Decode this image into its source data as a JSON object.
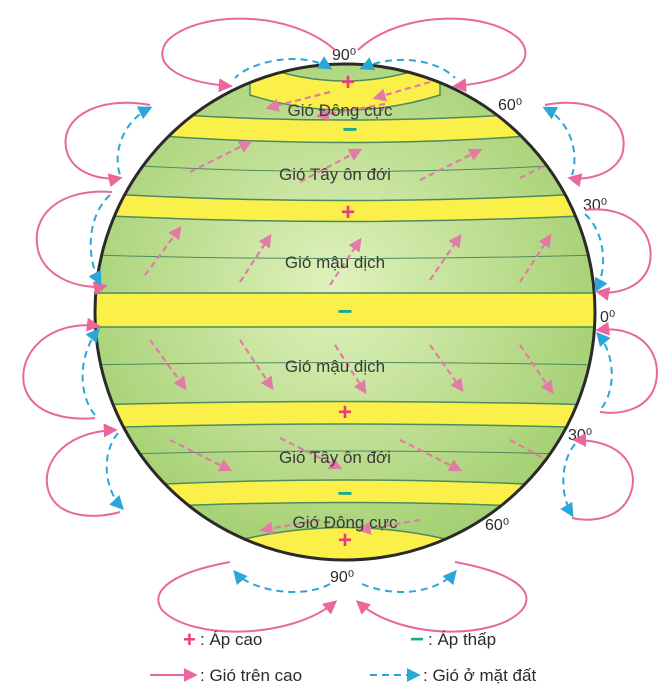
{
  "colors": {
    "globe_green": "#a9d47a",
    "globe_light": "#d6ecb0",
    "band_yellow": "#fbef4a",
    "band_line": "#4f8a5f",
    "high_pressure": "#ee3b7c",
    "low_pressure": "#1aa891",
    "upper_wind": "#e9679c",
    "surface_wind": "#2aa6d9",
    "inner_wind": "#e27ba6",
    "outline": "#2a2a2a"
  },
  "latitudes": {
    "north_90": "90⁰",
    "north_60": "60⁰",
    "north_30": "30⁰",
    "equator": "0⁰",
    "south_30": "30⁰",
    "south_60": "60⁰",
    "south_90": "90⁰"
  },
  "zones": {
    "north_polar_easterlies": "Gió Đông cực",
    "north_westerlies": "Gió Tây ôn đới",
    "north_trade_winds": "Gió mậu dịch",
    "south_trade_winds": "Gió mậu dịch",
    "south_westerlies": "Gió Tây ôn đới",
    "south_polar_easterlies": "Gió Đông cực"
  },
  "pressure_symbols": {
    "high": "+",
    "low": "−"
  },
  "legend": {
    "high_pressure": ": Áp cao",
    "low_pressure": ": Áp thấp",
    "upper_wind": ": Gió trên cao",
    "surface_wind": ": Gió ở mặt đất"
  }
}
